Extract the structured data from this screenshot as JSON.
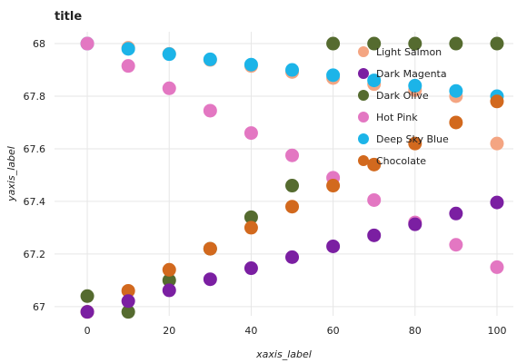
{
  "chart_data": {
    "type": "scatter",
    "title": "title",
    "xlabel": "xaxis_label",
    "ylabel": "yaxis_label",
    "xlim": [
      -8,
      104
    ],
    "ylim": [
      66.965,
      68.045
    ],
    "x_ticks": [
      0,
      20,
      40,
      60,
      80,
      100
    ],
    "x_tick_labels": [
      "0",
      "20",
      "40",
      "60",
      "80",
      "100"
    ],
    "y_ticks": [
      67.0,
      67.2,
      67.4,
      67.6,
      67.8,
      68.0
    ],
    "y_tick_labels": [
      "67",
      "67.2",
      "67.4",
      "67.6",
      "67.8",
      "68"
    ],
    "grid": true,
    "legend_position": "top-right",
    "x": [
      0,
      10,
      20,
      30,
      40,
      50,
      60,
      70,
      80,
      90,
      100
    ],
    "series": [
      {
        "name": "Light Salmon",
        "color": "#F4A582",
        "values": [
          68.0,
          67.984,
          67.961,
          67.938,
          67.915,
          67.892,
          67.869,
          67.846,
          67.823,
          67.8,
          67.62
        ]
      },
      {
        "name": "Dark Magenta",
        "color": "#7B1FA2",
        "values": [
          66.98,
          67.021,
          67.062,
          67.104,
          67.146,
          67.188,
          67.229,
          67.271,
          67.313,
          67.354,
          67.396
        ]
      },
      {
        "name": "Dark Olive",
        "color": "#556B2F",
        "values": [
          67.04,
          66.98,
          67.1,
          67.22,
          67.34,
          67.46,
          68.0,
          68.0,
          68.0,
          68.0,
          68.0
        ]
      },
      {
        "name": "Hot Pink",
        "color": "#E377C2",
        "values": [
          68.0,
          67.915,
          67.83,
          67.745,
          67.66,
          67.575,
          67.49,
          67.405,
          67.32,
          67.235,
          67.15
        ]
      },
      {
        "name": "Deep Sky Blue",
        "color": "#1CB4E8",
        "values": [
          68.0,
          67.98,
          67.96,
          67.94,
          67.92,
          67.9,
          67.88,
          67.86,
          67.84,
          67.82,
          67.8
        ]
      },
      {
        "name": "Chocolate",
        "color": "#D2691E",
        "values": [
          66.98,
          67.06,
          67.14,
          67.22,
          67.3,
          67.38,
          67.46,
          67.54,
          67.62,
          67.7,
          67.78
        ]
      }
    ]
  },
  "legend_order": [
    0,
    1,
    2,
    3,
    4,
    5
  ],
  "draw_order": [
    2,
    0,
    4,
    3,
    5,
    1
  ]
}
